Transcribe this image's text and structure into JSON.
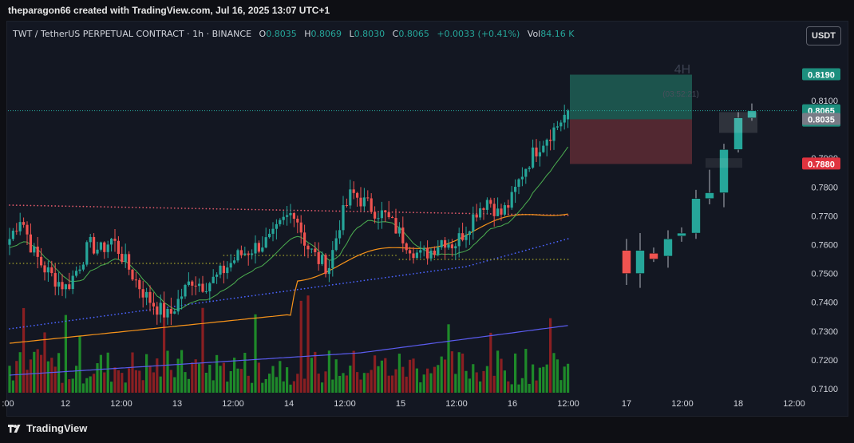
{
  "header": {
    "attribution": "theparagon66 created with TradingView.com, Jul 16, 2025 13:07 UTC+1"
  },
  "legend": {
    "symbol": "TWT / TetherUS PERPETUAL CONTRACT · 1h · BINANCE",
    "o_label": "O",
    "o_value": "0.8035",
    "h_label": "H",
    "h_value": "0.8069",
    "l_label": "L",
    "l_value": "0.8030",
    "c_label": "C",
    "c_value": "0.8065",
    "change": "+0.0033 (+0.41%)",
    "vol_label": "Vol",
    "vol_value": "84.16 K"
  },
  "currency_button": "USDT",
  "inset": {
    "label": "4H",
    "countdown": "(03:52:21)"
  },
  "price_tags": {
    "target": "0.8190",
    "current": "0.8065",
    "current_timer": "52:13",
    "open": "0.8035",
    "stop": "0.7880"
  },
  "y_axis_ticks": [
    "0.8100",
    "0.7900",
    "0.7800",
    "0.7700",
    "0.7600",
    "0.7500",
    "0.7400",
    "0.7300",
    "0.7200",
    "0.7100"
  ],
  "x_axis_ticks": [
    ":00",
    "12",
    "12:00",
    "13",
    "12:00",
    "14",
    "12:00",
    "15",
    "12:00",
    "16",
    "12:00",
    "17",
    "12:00",
    "18",
    "12:00"
  ],
  "colors": {
    "up": "#26a69a",
    "down": "#ef5350",
    "volume_up": "#1e8a2a",
    "volume_down": "#8a1f22",
    "ema_orange": "#f7931a",
    "ma_blue": "#5b5cf0",
    "ma_green": "#4caf50",
    "target_zone": "#1f5f55",
    "stop_zone": "#5a2a33",
    "dotted_red": "#e05a6a",
    "dotted_blue": "#4a63ff",
    "dotted_olive": "#8a8a2a"
  },
  "footer": {
    "brand": "TradingView"
  },
  "chart_data": {
    "type": "candlestick",
    "interval": "1h",
    "ylim": [
      0.705,
      0.825
    ],
    "last": {
      "open": 0.8035,
      "high": 0.8069,
      "low": 0.803,
      "close": 0.8065
    },
    "hourly_closes_approx": [
      0.762,
      0.77,
      0.758,
      0.752,
      0.748,
      0.745,
      0.752,
      0.76,
      0.758,
      0.762,
      0.755,
      0.748,
      0.742,
      0.738,
      0.735,
      0.742,
      0.748,
      0.746,
      0.748,
      0.752,
      0.756,
      0.758,
      0.76,
      0.762,
      0.768,
      0.772,
      0.76,
      0.755,
      0.752,
      0.768,
      0.778,
      0.775,
      0.772,
      0.77,
      0.765,
      0.76,
      0.756,
      0.758,
      0.762,
      0.76,
      0.765,
      0.772,
      0.776,
      0.77,
      0.775,
      0.785,
      0.792,
      0.797,
      0.801,
      0.8065
    ],
    "long_position": {
      "entry": 0.8035,
      "target": 0.819,
      "stop": 0.788
    },
    "inset_4h": {
      "label": "4H",
      "candles": [
        {
          "o": 0.758,
          "h": 0.762,
          "l": 0.746,
          "c": 0.75
        },
        {
          "o": 0.75,
          "h": 0.764,
          "l": 0.745,
          "c": 0.758
        },
        {
          "o": 0.757,
          "h": 0.759,
          "l": 0.754,
          "c": 0.755
        },
        {
          "o": 0.756,
          "h": 0.765,
          "l": 0.752,
          "c": 0.762
        },
        {
          "o": 0.763,
          "h": 0.766,
          "l": 0.761,
          "c": 0.764
        },
        {
          "o": 0.764,
          "h": 0.779,
          "l": 0.762,
          "c": 0.776
        },
        {
          "o": 0.776,
          "h": 0.786,
          "l": 0.774,
          "c": 0.778
        },
        {
          "o": 0.778,
          "h": 0.795,
          "l": 0.773,
          "c": 0.793
        },
        {
          "o": 0.793,
          "h": 0.806,
          "l": 0.792,
          "c": 0.804
        },
        {
          "o": 0.804,
          "h": 0.809,
          "l": 0.803,
          "c": 0.8065
        }
      ]
    }
  }
}
